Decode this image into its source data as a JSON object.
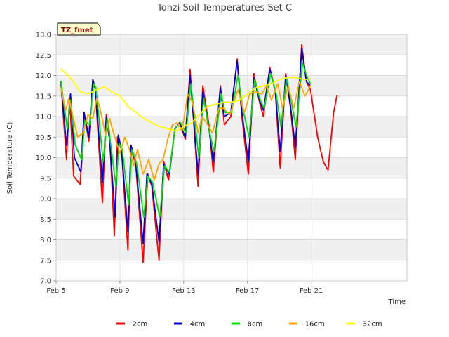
{
  "chart_data": {
    "type": "line",
    "title": "Tonzi Soil Temperatures Set C",
    "site_tag": "TZ_fmet",
    "xlabel": "Time",
    "ylabel": "Soil Temperature (C)",
    "ylim": [
      7.0,
      13.0
    ],
    "xlim": [
      0,
      22
    ],
    "y_ticks": [
      7.0,
      7.5,
      8.0,
      8.5,
      9.0,
      9.5,
      10.0,
      10.5,
      11.0,
      11.5,
      12.0,
      12.5,
      13.0
    ],
    "x_ticks": [
      {
        "x": 0,
        "label": "Feb 5"
      },
      {
        "x": 4,
        "label": "Feb 9"
      },
      {
        "x": 8,
        "label": "Feb 13"
      },
      {
        "x": 12,
        "label": "Feb 17"
      },
      {
        "x": 16,
        "label": "Feb 21"
      }
    ],
    "x_units": "days since Feb 5",
    "grid": true,
    "legend_position": "bottom",
    "series": [
      {
        "name": "-2cm",
        "color": "#ff0000",
        "x": [
          0.3,
          0.65,
          0.85,
          1.1,
          1.5,
          1.65,
          1.75,
          2.05,
          2.3,
          2.45,
          2.9,
          3.15,
          3.35,
          3.65,
          3.85,
          4.1,
          4.5,
          4.7,
          5.0,
          5.45,
          5.75,
          6.0,
          6.45,
          6.75,
          7.05,
          7.45,
          7.75,
          8.1,
          8.4,
          8.9,
          9.2,
          9.6,
          9.85,
          10.3,
          10.55,
          10.95,
          11.35,
          11.65,
          12.05,
          12.4,
          12.75,
          13.0,
          13.4,
          13.75,
          14.05,
          14.4,
          14.7,
          15.0,
          15.4,
          15.7,
          15.95,
          16.4,
          16.75,
          17.05,
          17.4,
          17.6
        ],
        "y": [
          11.85,
          9.95,
          11.45,
          9.55,
          9.35,
          10.1,
          11.1,
          10.4,
          11.8,
          11.7,
          8.9,
          11.05,
          10.6,
          8.1,
          10.5,
          10.2,
          7.75,
          10.25,
          9.8,
          7.45,
          9.6,
          9.3,
          7.5,
          9.9,
          9.45,
          10.7,
          10.85,
          10.45,
          12.15,
          9.3,
          11.75,
          10.75,
          9.65,
          11.75,
          10.8,
          11.0,
          12.4,
          11.0,
          9.6,
          12.05,
          11.35,
          11.0,
          12.2,
          11.6,
          9.75,
          12.05,
          11.2,
          9.95,
          12.75,
          11.85,
          11.65,
          10.5,
          9.9,
          9.7,
          11.1,
          11.5
        ]
      },
      {
        "name": "-4cm",
        "color": "#0000cc",
        "x": [
          0.3,
          0.65,
          0.9,
          1.15,
          1.55,
          1.75,
          2.05,
          2.3,
          2.45,
          2.9,
          3.15,
          3.35,
          3.7,
          3.9,
          4.1,
          4.5,
          4.7,
          5.0,
          5.45,
          5.7,
          6.0,
          6.45,
          6.75,
          7.1,
          7.45,
          7.75,
          8.1,
          8.4,
          8.9,
          9.2,
          9.6,
          9.85,
          10.3,
          10.55,
          10.95,
          11.35,
          11.65,
          12.05,
          12.4,
          12.75,
          13.0,
          13.4,
          13.75,
          14.05,
          14.4,
          14.7,
          15.0,
          15.4,
          15.7,
          15.95
        ],
        "y": [
          11.85,
          10.3,
          11.55,
          10.0,
          9.65,
          11.1,
          10.5,
          11.9,
          11.7,
          9.4,
          11.0,
          10.45,
          8.55,
          10.55,
          10.2,
          8.2,
          10.3,
          9.85,
          7.9,
          9.6,
          9.35,
          7.95,
          9.85,
          9.6,
          10.7,
          10.85,
          10.5,
          12.0,
          9.6,
          11.6,
          10.65,
          9.9,
          11.7,
          11.0,
          11.1,
          12.35,
          11.1,
          9.9,
          11.95,
          11.4,
          11.15,
          12.15,
          11.6,
          10.15,
          12.0,
          11.25,
          10.25,
          12.65,
          11.85,
          11.75
        ]
      },
      {
        "name": "-8cm",
        "color": "#00dd00",
        "x": [
          0.3,
          0.7,
          0.9,
          1.2,
          1.6,
          1.8,
          2.1,
          2.35,
          2.5,
          2.95,
          3.2,
          3.4,
          3.75,
          3.95,
          4.15,
          4.55,
          4.75,
          5.05,
          5.5,
          5.75,
          6.05,
          6.5,
          6.8,
          7.1,
          7.45,
          7.8,
          8.15,
          8.45,
          8.95,
          9.25,
          9.6,
          9.9,
          10.35,
          10.6,
          11.0,
          11.4,
          11.7,
          12.1,
          12.45,
          12.8,
          13.05,
          13.45,
          13.8,
          14.1,
          14.45,
          14.75,
          15.05,
          15.45,
          15.75,
          15.95
        ],
        "y": [
          11.85,
          10.7,
          11.4,
          10.3,
          9.95,
          10.9,
          10.8,
          11.8,
          11.7,
          9.9,
          10.95,
          10.4,
          9.3,
          10.35,
          10.2,
          8.85,
          10.2,
          9.85,
          8.55,
          9.55,
          9.4,
          8.55,
          9.8,
          9.65,
          10.7,
          10.85,
          10.6,
          11.8,
          10.0,
          11.45,
          10.65,
          10.15,
          11.55,
          11.1,
          11.1,
          12.0,
          11.2,
          10.5,
          11.9,
          11.4,
          11.2,
          12.05,
          11.55,
          10.75,
          11.95,
          11.35,
          10.75,
          12.3,
          11.95,
          11.8
        ]
      },
      {
        "name": "-16cm",
        "color": "#ffa500",
        "x": [
          0.3,
          0.6,
          0.8,
          1.0,
          1.35,
          1.7,
          2.0,
          2.3,
          2.55,
          2.75,
          3.1,
          3.35,
          3.6,
          4.0,
          4.3,
          4.6,
          4.85,
          5.1,
          5.45,
          5.8,
          6.15,
          6.45,
          6.7,
          7.0,
          7.3,
          7.6,
          7.9,
          8.25,
          8.55,
          8.9,
          9.15,
          9.5,
          9.8,
          10.2,
          10.5,
          10.9,
          11.15,
          11.4,
          11.8,
          12.15,
          12.5,
          12.9,
          13.2,
          13.5,
          13.9,
          14.2,
          14.55,
          14.9,
          15.25,
          15.6,
          15.95
        ],
        "y": [
          11.7,
          11.15,
          11.45,
          11.1,
          10.5,
          10.6,
          11.05,
          10.95,
          11.45,
          11.2,
          10.55,
          10.95,
          10.6,
          10.1,
          10.5,
          10.2,
          9.8,
          10.2,
          9.6,
          9.95,
          9.45,
          9.85,
          9.95,
          10.45,
          10.8,
          10.85,
          10.65,
          11.55,
          11.35,
          10.6,
          11.0,
          10.8,
          10.6,
          11.2,
          11.2,
          11.05,
          11.35,
          11.65,
          11.1,
          11.55,
          11.6,
          11.55,
          11.75,
          11.4,
          11.8,
          11.2,
          11.75,
          11.2,
          11.85,
          11.5,
          11.75
        ]
      },
      {
        "name": "-32cm",
        "color": "#ffff00",
        "x": [
          0.3,
          0.6,
          1.0,
          1.5,
          2.0,
          2.5,
          3.0,
          3.5,
          4.0,
          4.5,
          5.0,
          5.5,
          6.0,
          6.5,
          7.0,
          7.5,
          8.0,
          8.5,
          9.0,
          9.5,
          10.0,
          10.5,
          11.0,
          11.5,
          12.0,
          12.5,
          13.0,
          13.5,
          14.0,
          14.5,
          15.0,
          15.5,
          15.95
        ],
        "y": [
          12.15,
          12.05,
          11.9,
          11.6,
          11.55,
          11.65,
          11.72,
          11.6,
          11.5,
          11.25,
          11.1,
          10.95,
          10.85,
          10.75,
          10.7,
          10.65,
          10.75,
          10.85,
          11.05,
          11.25,
          11.3,
          11.35,
          11.35,
          11.4,
          11.55,
          11.7,
          11.75,
          11.8,
          11.9,
          11.95,
          11.95,
          11.9,
          11.92
        ]
      }
    ]
  }
}
